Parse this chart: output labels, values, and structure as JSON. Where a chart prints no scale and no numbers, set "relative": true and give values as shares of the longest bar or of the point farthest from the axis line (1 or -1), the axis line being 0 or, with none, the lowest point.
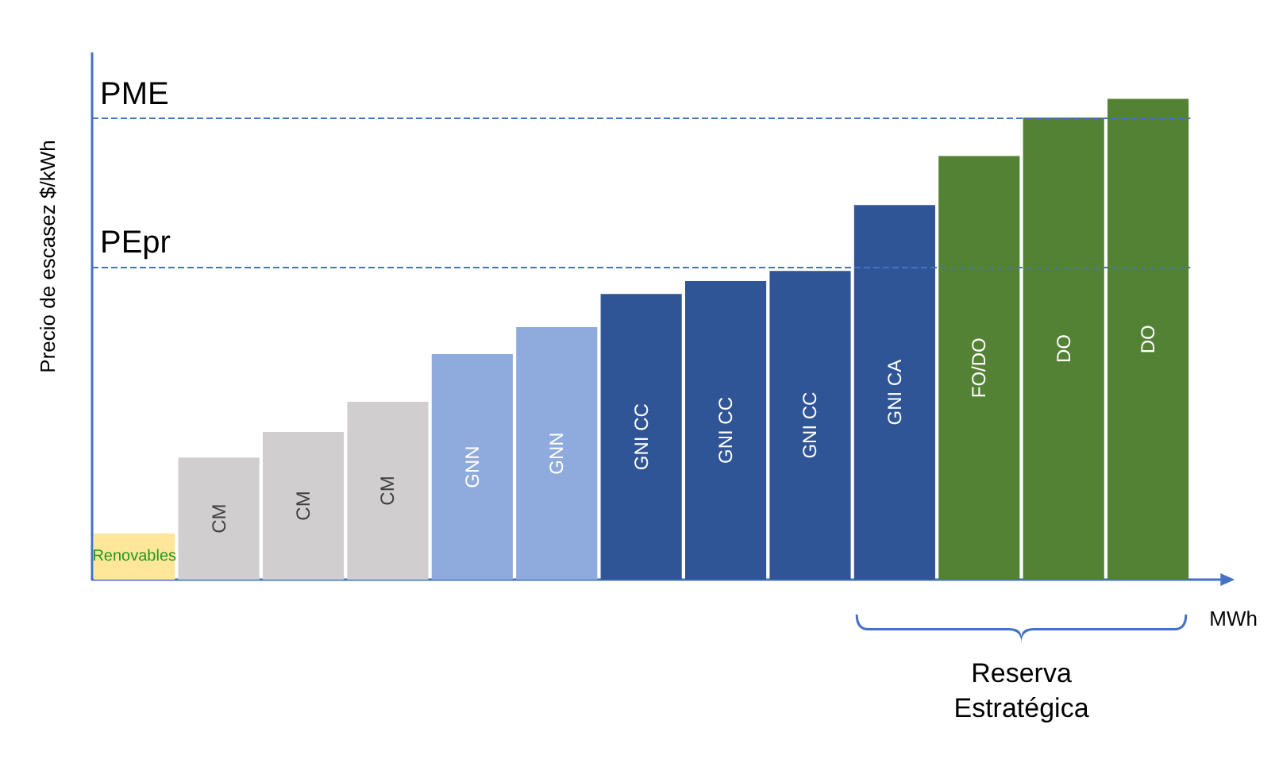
{
  "chart_data": {
    "type": "bar",
    "relative": true,
    "ylabel": "Precio de escasez $/kWh",
    "xlabel": "MWh",
    "categories": [
      "Renovables",
      "CM",
      "CM",
      "CM",
      "GNN",
      "GNN",
      "GNI CC",
      "GNI CC",
      "GNI CC",
      "GNI CA",
      "FO/DO",
      "DO",
      "DO"
    ],
    "values": [
      0.096,
      0.254,
      0.307,
      0.37,
      0.469,
      0.525,
      0.594,
      0.621,
      0.642,
      0.779,
      0.881,
      0.961,
      1
    ],
    "colors": [
      "#ffe699",
      "#d0cece",
      "#d0cece",
      "#d0cece",
      "#8faadc",
      "#8faadc",
      "#2f5597",
      "#2f5597",
      "#2f5597",
      "#2f5597",
      "#548235",
      "#548235",
      "#548235"
    ],
    "ref_lines": [
      {
        "axis": "y",
        "value": 0.961,
        "label": "PME",
        "color": "#4472c4",
        "line_style": "dashed"
      },
      {
        "axis": "y",
        "value": 0.645,
        "label": "PEpr",
        "color": "#4472c4",
        "line_style": "dashed"
      }
    ],
    "annotations": [
      "Reserva Estratégica"
    ],
    "grid": false,
    "tick_labels": false
  }
}
